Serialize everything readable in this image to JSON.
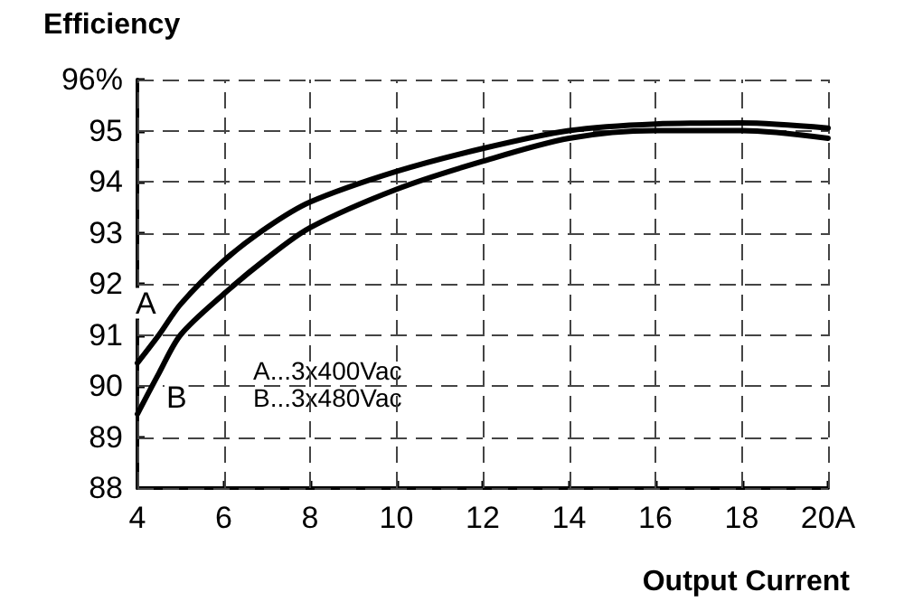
{
  "chart_data": {
    "type": "line",
    "ylabel": "Efficiency",
    "xlabel": "Output Current",
    "annotations": [
      "A...3x400Vac",
      "B...3x480Vac"
    ],
    "series": [
      {
        "name": "A",
        "color": "#000000",
        "x": [
          4,
          4.5,
          5,
          6,
          7,
          8,
          10,
          12,
          14,
          16,
          18,
          20
        ],
        "values": [
          90.45,
          91.0,
          91.6,
          92.45,
          93.1,
          93.6,
          94.2,
          94.65,
          95.0,
          95.13,
          95.15,
          95.05
        ]
      },
      {
        "name": "B",
        "color": "#000000",
        "x": [
          4,
          4.5,
          5,
          6,
          7,
          8,
          10,
          12,
          14,
          16,
          18,
          20
        ],
        "values": [
          89.45,
          90.25,
          91.0,
          91.8,
          92.5,
          93.1,
          93.85,
          94.4,
          94.85,
          95.0,
          95.0,
          94.85
        ]
      }
    ],
    "xlim": [
      4,
      20
    ],
    "xticks": [
      4,
      6,
      8,
      10,
      12,
      14,
      16,
      18,
      {
        "value": 20,
        "label": "20A"
      }
    ],
    "ylim": [
      88,
      96
    ],
    "yticks": [
      88,
      89,
      90,
      91,
      92,
      93,
      94,
      95,
      {
        "value": 96,
        "label": "96%"
      }
    ],
    "grid": true,
    "legend": false,
    "marker": "none",
    "line_style": "solid"
  }
}
